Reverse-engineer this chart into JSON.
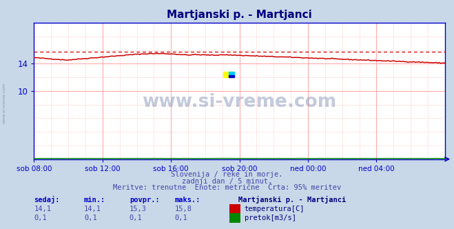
{
  "title": "Martjanski p. - Martjanci",
  "fig_bg_color": "#c8d8e8",
  "plot_bg_color": "#ffffff",
  "grid_color_major": "#ffaaaa",
  "grid_color_minor": "#ffdddd",
  "temp_line_color": "#cc0000",
  "pretok_line_color": "#008800",
  "axis_color": "#0000cc",
  "tick_color": "#0000cc",
  "title_color": "#000080",
  "subtitle_color": "#4444aa",
  "stats_header_color": "#0000cc",
  "stats_value_color": "#4444aa",
  "label_color": "#000080",
  "watermark_color": "#8899bb",
  "watermark_alpha": 0.5,
  "x_labels": [
    "sob 08:00",
    "sob 12:00",
    "sob 16:00",
    "sob 20:00",
    "ned 00:00",
    "ned 04:00"
  ],
  "x_ticks_pos": [
    0,
    48,
    96,
    144,
    192,
    240
  ],
  "total_points": 289,
  "y_min": 0,
  "y_max": 20,
  "temp_max_line": 15.8,
  "subtitle_line1": "Slovenija / reke in morje.",
  "subtitle_line2": "zadnji dan / 5 minut.",
  "subtitle_line3": "Meritve: trenutne  Enote: metrične  Črta: 95% meritev",
  "stats_headers": [
    "sedaj:",
    "min.:",
    "povpr.:",
    "maks.:"
  ],
  "stats_temp": [
    "14,1",
    "14,1",
    "15,3",
    "15,8"
  ],
  "stats_pretok": [
    "0,1",
    "0,1",
    "0,1",
    "0,1"
  ],
  "legend_title": "Martjanski p. - Martjanci",
  "legend_temp_label": "temperatura[C]",
  "legend_pretok_label": "pretok[m3/s]"
}
